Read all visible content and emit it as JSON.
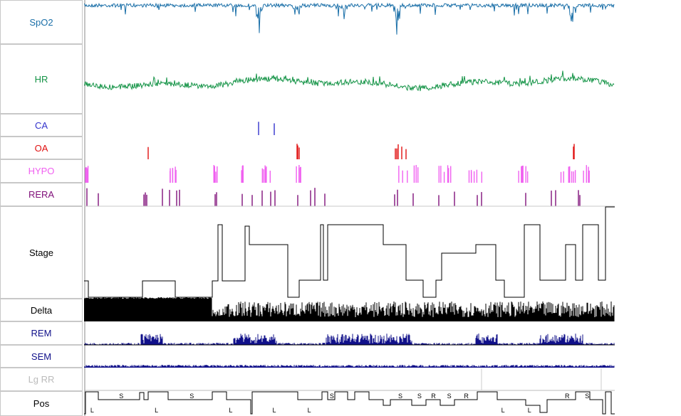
{
  "channels": [
    {
      "id": "spo2",
      "label": "SpO2",
      "color": "#1a6fa8"
    },
    {
      "id": "hr",
      "label": "HR",
      "color": "#159447"
    },
    {
      "id": "ca",
      "label": "CA",
      "color": "#3333cc"
    },
    {
      "id": "oa",
      "label": "OA",
      "color": "#e01010"
    },
    {
      "id": "hypo",
      "label": "HYPO",
      "color": "#f060f0"
    },
    {
      "id": "rera",
      "label": "RERA",
      "color": "#80107a"
    },
    {
      "id": "stage",
      "label": "Stage",
      "color": "#000000"
    },
    {
      "id": "delta",
      "label": "Delta",
      "color": "#000000"
    },
    {
      "id": "rem",
      "label": "REM",
      "color": "#10108a"
    },
    {
      "id": "sem",
      "label": "SEM",
      "color": "#10108a"
    },
    {
      "id": "lgrr",
      "label": "Lg RR",
      "color": "#bbbbbb"
    },
    {
      "id": "pos",
      "label": "Pos",
      "color": "#000000"
    }
  ],
  "pos_letters": [
    {
      "t": 0.012,
      "c": "L"
    },
    {
      "t": 0.066,
      "c": "S"
    },
    {
      "t": 0.133,
      "c": "L"
    },
    {
      "t": 0.199,
      "c": "S"
    },
    {
      "t": 0.273,
      "c": "L"
    },
    {
      "t": 0.355,
      "c": "L"
    },
    {
      "t": 0.421,
      "c": "L"
    },
    {
      "t": 0.463,
      "c": "S"
    },
    {
      "t": 0.592,
      "c": "S"
    },
    {
      "t": 0.628,
      "c": "S"
    },
    {
      "t": 0.654,
      "c": "R"
    },
    {
      "t": 0.684,
      "c": "S"
    },
    {
      "t": 0.716,
      "c": "R"
    },
    {
      "t": 0.786,
      "c": "L"
    },
    {
      "t": 0.836,
      "c": "L"
    },
    {
      "t": 0.906,
      "c": "R"
    },
    {
      "t": 0.944,
      "c": "S"
    }
  ]
}
